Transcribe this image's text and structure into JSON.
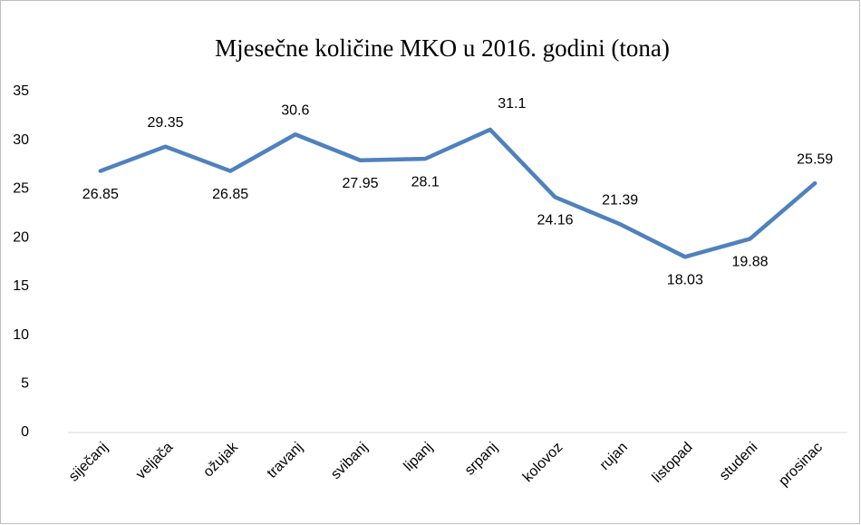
{
  "chart_data": {
    "type": "line",
    "title": "Mjesečne količine MKO u 2016. godini (tona)",
    "categories": [
      "siječanj",
      "veljača",
      "ožujak",
      "travanj",
      "svibanj",
      "lipanj",
      "srpanj",
      "kolovoz",
      "rujan",
      "listopad",
      "studeni",
      "prosinac"
    ],
    "values": [
      26.85,
      29.35,
      26.85,
      30.6,
      27.95,
      28.1,
      31.1,
      24.16,
      21.39,
      18.03,
      19.88,
      25.59
    ],
    "color": "#4f81bd",
    "ylim": [
      0,
      35
    ],
    "yticks": [
      0,
      5,
      10,
      15,
      20,
      25,
      30,
      35
    ],
    "grid": false
  }
}
